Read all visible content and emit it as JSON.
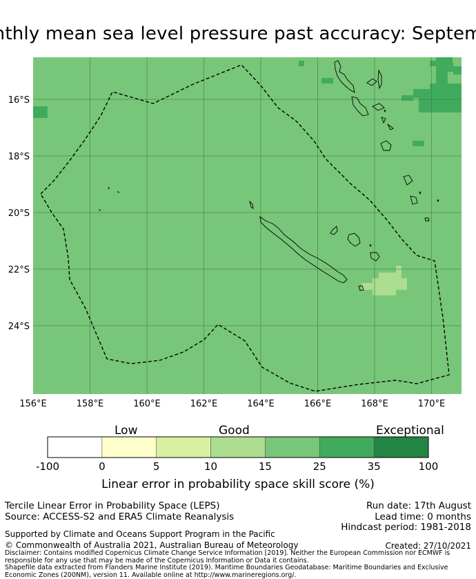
{
  "title": "onthly mean sea level pressure past accuracy: Septemb",
  "map": {
    "lat_labels": [
      "16°S",
      "18°S",
      "20°S",
      "22°S",
      "24°S"
    ],
    "lon_labels": [
      "156°E",
      "158°E",
      "160°E",
      "162°E",
      "164°E",
      "166°E",
      "168°E",
      "170°E"
    ],
    "colors": {
      "base": "#78c679",
      "dark": "#41ab5d",
      "light": "#addd8e",
      "grid": "#3f7a40"
    }
  },
  "colorbar": {
    "category_labels": [
      "Low",
      "Good",
      "Exceptional"
    ],
    "ticks": [
      "-100",
      "0",
      "5",
      "10",
      "15",
      "25",
      "35",
      "100"
    ],
    "colors": [
      "#ffffff",
      "#ffffcc",
      "#d9f0a3",
      "#addd8e",
      "#78c679",
      "#41ab5d",
      "#238443"
    ],
    "title": "Linear error in probability space skill score (%)"
  },
  "footer": {
    "line1": "Tercile Linear Error in Probability Space (LEPS)",
    "line2": "Source: ACCESS-S2 and ERA5 Climate Reanalysis",
    "run_date": "Run date: 17th August",
    "lead_time": "Lead time: 0 months",
    "hindcast": "Hindcast period: 1981-2018",
    "supported": "Supported by Climate and Oceans Support Program in the Pacific",
    "copyright": "© Commonwealth of Australia 2021, Australian Bureau of Meteorology",
    "created": "Created: 27/10/2021",
    "disclaimer": "Disclaimer: Contains modified Copernicus Climate Change Service Information [2019]. Neither the European Commission nor ECMWF is responsible for any use that may be made of the Copernicus Information or Data it contains.",
    "shapefile": "Shapefile data extracted from Flanders Marine Institute (2019). Maritime Boundaries Geodatabase: Maritime Boundaries and Exclusive Economic Zones (200NM), version 11. Available online at http://www.marineregions.org/."
  }
}
